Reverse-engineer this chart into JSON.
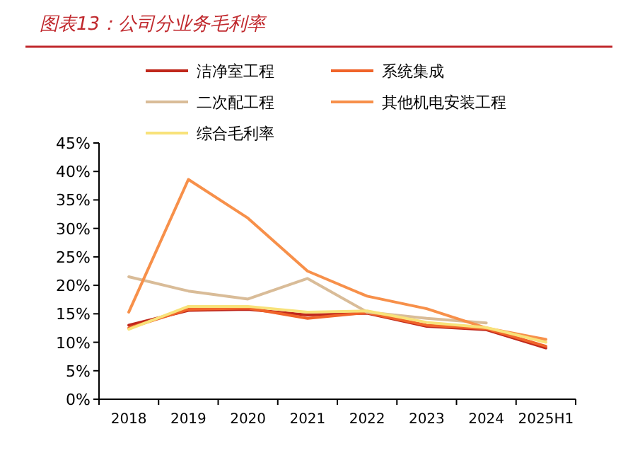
{
  "chart_data": {
    "type": "line",
    "title": "图表13：公司分业务毛利率",
    "categories": [
      "2018",
      "2019",
      "2020",
      "2021",
      "2022",
      "2023",
      "2024",
      "2025H1"
    ],
    "series": [
      {
        "name": "洁净室工程",
        "color": "#c0281c",
        "values": [
          13.0,
          15.6,
          15.8,
          14.8,
          15.1,
          12.8,
          12.2,
          9.0
        ]
      },
      {
        "name": "系统集成",
        "color": "#f0642a",
        "values": [
          12.5,
          15.8,
          16.0,
          14.2,
          15.2,
          13.0,
          12.4,
          9.3
        ]
      },
      {
        "name": "二次配工程",
        "color": "#d9bc98",
        "values": [
          21.5,
          19.0,
          17.6,
          21.2,
          15.3,
          14.2,
          13.4,
          null
        ]
      },
      {
        "name": "其他机电安装工程",
        "color": "#f7904a",
        "values": [
          15.3,
          38.6,
          31.8,
          22.5,
          18.1,
          15.9,
          12.5,
          10.5
        ]
      },
      {
        "name": "综合毛利率",
        "color": "#f8e27a",
        "values": [
          12.3,
          16.3,
          16.3,
          15.3,
          15.5,
          13.5,
          12.6,
          10.0
        ]
      }
    ],
    "ylim": [
      0,
      45
    ],
    "yticks": [
      {
        "value": 0,
        "label": "0%"
      },
      {
        "value": 5,
        "label": "5%"
      },
      {
        "value": 10,
        "label": "10%"
      },
      {
        "value": 15,
        "label": "15%"
      },
      {
        "value": 20,
        "label": "20%"
      },
      {
        "value": 25,
        "label": "25%"
      },
      {
        "value": 30,
        "label": "30%"
      },
      {
        "value": 35,
        "label": "35%"
      },
      {
        "value": 40,
        "label": "40%"
      },
      {
        "value": 45,
        "label": "45%"
      }
    ],
    "legend": "top",
    "grid": false
  }
}
